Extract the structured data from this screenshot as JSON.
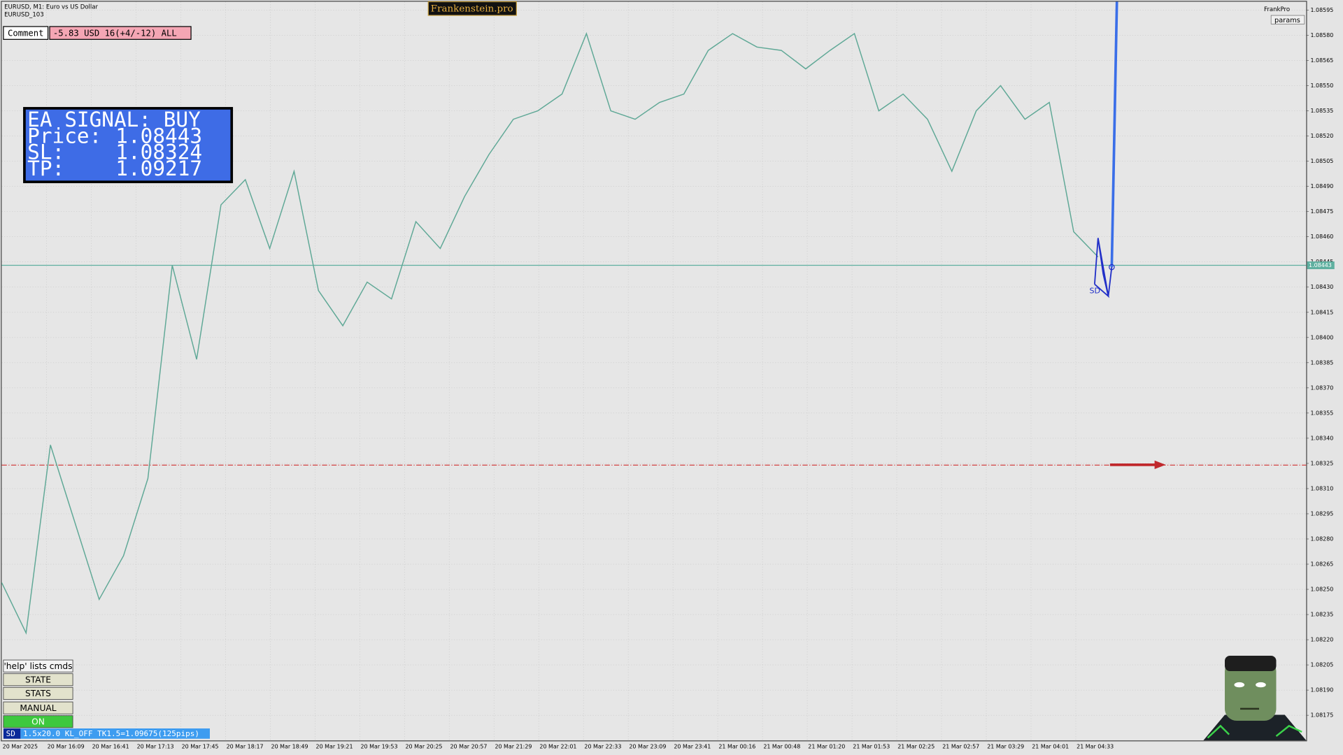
{
  "header": {
    "symbol": "EURUSD, M1:  Euro vs US Dollar",
    "account": "EURUSD_103",
    "brand": "Frankenstein.pro",
    "user": "FrankPro",
    "params_button": "params"
  },
  "comment": {
    "label": "Comment",
    "text": "-5.83 USD 16(+4/-12) ALL"
  },
  "signal": {
    "title": "EA SIGNAL: BUY",
    "price_label": "Price:",
    "price": 1.08443,
    "sl_label": "SL:",
    "sl": 1.08324,
    "tp_label": "TP:",
    "tp": 1.09217
  },
  "buttons": [
    "'help' lists cmds",
    "STATE",
    "STATS",
    "MANUAL",
    "ON"
  ],
  "status": {
    "tag": "SD",
    "text": "1.5x20.0 KL_OFF TK1.5=1.09675(125pips)"
  },
  "pattern_label": "SD",
  "time_axis": [
    "20 Mar 2025",
    "20 Mar 16:09",
    "20 Mar 16:41",
    "20 Mar 17:13",
    "20 Mar 17:45",
    "20 Mar 18:17",
    "20 Mar 18:49",
    "20 Mar 19:21",
    "20 Mar 19:53",
    "20 Mar 20:25",
    "20 Mar 20:57",
    "20 Mar 21:29",
    "20 Mar 22:01",
    "20 Mar 22:33",
    "20 Mar 23:09",
    "20 Mar 23:41",
    "21 Mar 00:16",
    "21 Mar 00:48",
    "21 Mar 01:20",
    "21 Mar 01:53",
    "21 Mar 02:25",
    "21 Mar 02:57",
    "21 Mar 03:29",
    "21 Mar 04:01",
    "21 Mar 04:33"
  ],
  "chart_data": {
    "type": "line",
    "color": "#5fa896",
    "grid": true,
    "values": [
      1.08254,
      1.08224,
      1.08336,
      1.0829,
      1.08244,
      1.0827,
      1.08316,
      1.08443,
      1.08387,
      1.08479,
      1.08494,
      1.08453,
      1.08499,
      1.08428,
      1.08407,
      1.08433,
      1.08423,
      1.08469,
      1.08453,
      1.08484,
      1.08509,
      1.0853,
      1.08535,
      1.08545,
      1.08581,
      1.08535,
      1.0853,
      1.0854,
      1.08545,
      1.08571,
      1.08581,
      1.08573,
      1.08571,
      1.0856,
      1.08571,
      1.08581,
      1.08535,
      1.08545,
      1.0853,
      1.08499,
      1.08535,
      1.0855,
      1.0853,
      1.0854,
      1.08463,
      1.08448
    ],
    "ylim": [
      1.0816,
      1.086
    ],
    "yticks": [
      1.08595,
      {
        "value": 1.0858,
        "label": "1.08580"
      },
      1.08565,
      {
        "value": 1.0855,
        "label": "1.08550"
      },
      1.08535,
      {
        "value": 1.0852,
        "label": "1.08520"
      },
      1.08505,
      {
        "value": 1.0849,
        "label": "1.08490"
      },
      1.08475,
      {
        "value": 1.0846,
        "label": "1.08460"
      },
      1.08445,
      {
        "value": 1.0843,
        "label": "1.08430"
      },
      1.08415,
      {
        "value": 1.084,
        "label": "1.08400"
      },
      1.08385,
      {
        "value": 1.0837,
        "label": "1.08370"
      },
      1.08355,
      {
        "value": 1.0834,
        "label": "1.08340"
      },
      1.08325,
      {
        "value": 1.0831,
        "label": "1.08310"
      },
      1.08295,
      {
        "value": 1.0828,
        "label": "1.08280"
      },
      1.08265,
      {
        "value": 1.0825,
        "label": "1.08250"
      },
      1.08235,
      {
        "value": 1.0822,
        "label": "1.08220"
      },
      1.08205,
      {
        "value": 1.0819,
        "label": "1.08190"
      },
      1.08175
    ]
  }
}
